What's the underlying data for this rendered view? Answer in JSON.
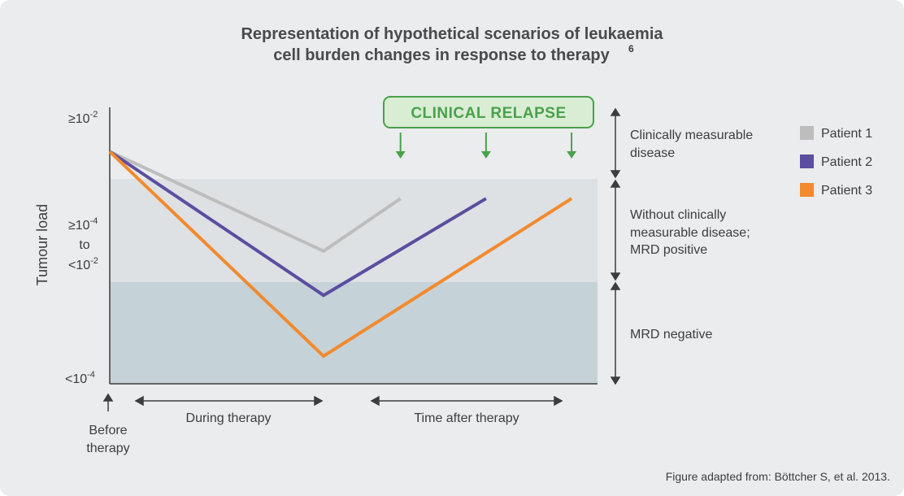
{
  "chart_data": {
    "type": "line",
    "title_line1": "Representation of hypothetical scenarios of leukaemia",
    "title_line2": "cell burden changes in response to therapy",
    "title_ref": "6",
    "ylabel": "Tumour load",
    "y_ticks": {
      "top_base": "≥10",
      "top_exp": "-2",
      "mid_a_base": "≥10",
      "mid_a_exp": "-4",
      "mid_b": "to",
      "mid_c_base": "<10",
      "mid_c_exp": "-2",
      "bottom_base": "<10",
      "bottom_exp": "-4"
    },
    "x_annotations": {
      "before_1": "Before",
      "before_2": "therapy",
      "during": "During therapy",
      "after": "Time after therapy"
    },
    "zones": [
      {
        "line1": "Clinically measurable",
        "line2": "disease",
        "line3": ""
      },
      {
        "line1": "Without clinically",
        "line2": "measurable disease;",
        "line3": "MRD positive"
      },
      {
        "line1": "MRD negative",
        "line2": "",
        "line3": ""
      }
    ],
    "clinical_relapse": "CLINICAL RELAPSE",
    "series": [
      {
        "name": "Patient 1",
        "color": "#bdbdbd",
        "points": [
          [
            0,
            0.84
          ],
          [
            1,
            0.48
          ],
          [
            1.36,
            0.67
          ]
        ]
      },
      {
        "name": "Patient 2",
        "color": "#5b4ea0",
        "points": [
          [
            0,
            0.84
          ],
          [
            1,
            0.32
          ],
          [
            1.76,
            0.67
          ]
        ]
      },
      {
        "name": "Patient 3",
        "color": "#f28a2e",
        "points": [
          [
            0,
            0.84
          ],
          [
            1,
            0.1
          ],
          [
            2.16,
            0.67
          ]
        ]
      }
    ],
    "relapse_x": [
      1.36,
      1.76,
      2.16
    ],
    "colors": {
      "zone_mid": "#dde1e4",
      "zone_low": "#c5d2d8",
      "relapse_fill": "#d9edd5",
      "relapse_stroke": "#4aa14a"
    }
  },
  "footnote": "Figure adapted from: Böttcher S, et al. 2013."
}
